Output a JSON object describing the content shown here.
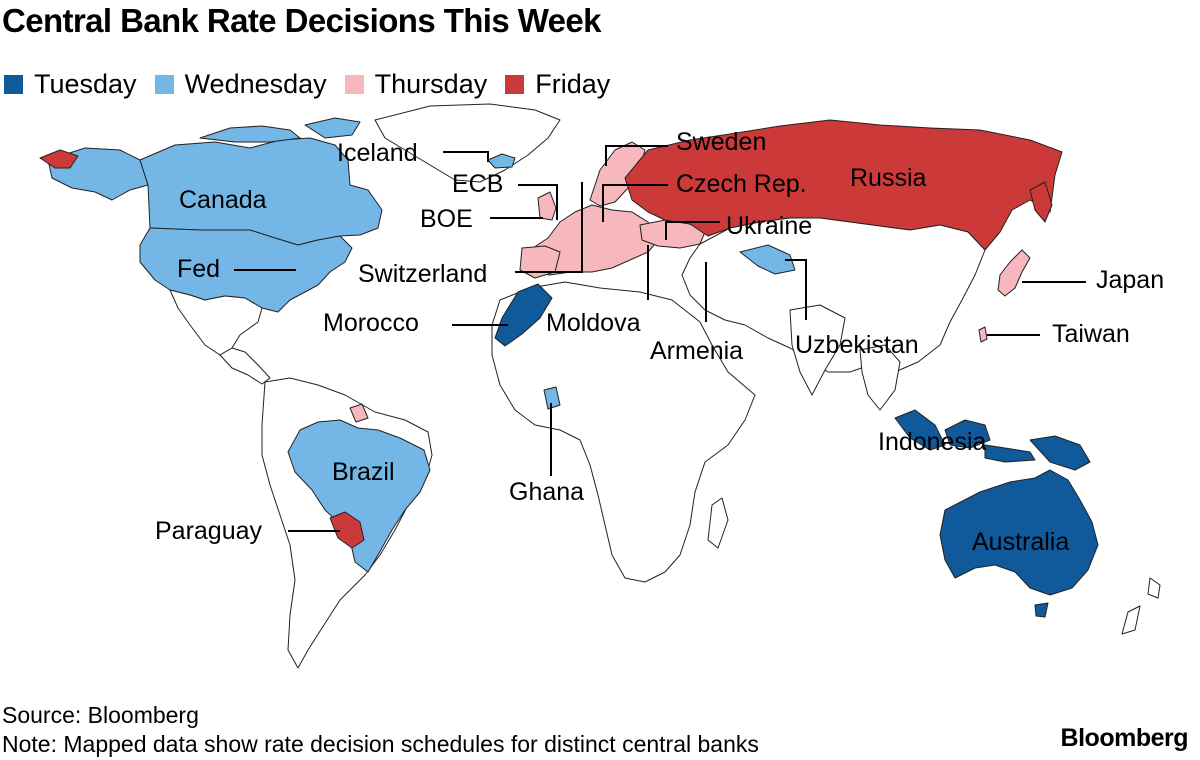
{
  "title": "Central Bank Rate Decisions This Week",
  "legend": [
    {
      "label": "Tuesday",
      "color": "#10599a"
    },
    {
      "label": "Wednesday",
      "color": "#74b7e7"
    },
    {
      "label": "Thursday",
      "color": "#f6b7bd"
    },
    {
      "label": "Friday",
      "color": "#cc3939"
    }
  ],
  "colors": {
    "land": "#ffffff",
    "border": "#222222",
    "leader": "#000000"
  },
  "labels": {
    "iceland": "Iceland",
    "canada": "Canada",
    "fed": "Fed",
    "ecb": "ECB",
    "boe": "BOE",
    "switzerland": "Switzerland",
    "sweden": "Sweden",
    "czech": "Czech Rep.",
    "russia": "Russia",
    "ukraine": "Ukraine",
    "japan": "Japan",
    "taiwan": "Taiwan",
    "morocco": "Morocco",
    "moldova": "Moldova",
    "armenia": "Armenia",
    "uzbekistan": "Uzbekistan",
    "indonesia": "Indonesia",
    "ghana": "Ghana",
    "brazil": "Brazil",
    "paraguay": "Paraguay",
    "australia": "Australia"
  },
  "source": "Source: Bloomberg",
  "note": "Note: Mapped data show rate decision schedules for distinct central banks",
  "logo": "Bloomberg"
}
